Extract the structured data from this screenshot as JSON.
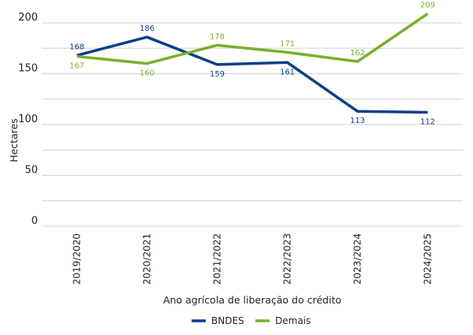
{
  "chart_data": {
    "type": "line",
    "categories": [
      "2019/2020",
      "2020/2021",
      "2021/2022",
      "2022/2023",
      "2023/2024",
      "2024/2025"
    ],
    "series": [
      {
        "name": "BNDES",
        "values": [
          168,
          186,
          159,
          161,
          113,
          112
        ],
        "color": "#0b3f86"
      },
      {
        "name": "Demais",
        "values": [
          167,
          160,
          178,
          171,
          162,
          209
        ],
        "color": "#7aaf2b"
      }
    ],
    "xlabel": "Ano agrícola de liberação do crédito",
    "ylabel": "Hectares",
    "ylim": [
      0,
      200
    ],
    "yticks": [
      0,
      50,
      100,
      150,
      200
    ],
    "grid": true,
    "data_labels": true,
    "legend_position": "bottom"
  }
}
